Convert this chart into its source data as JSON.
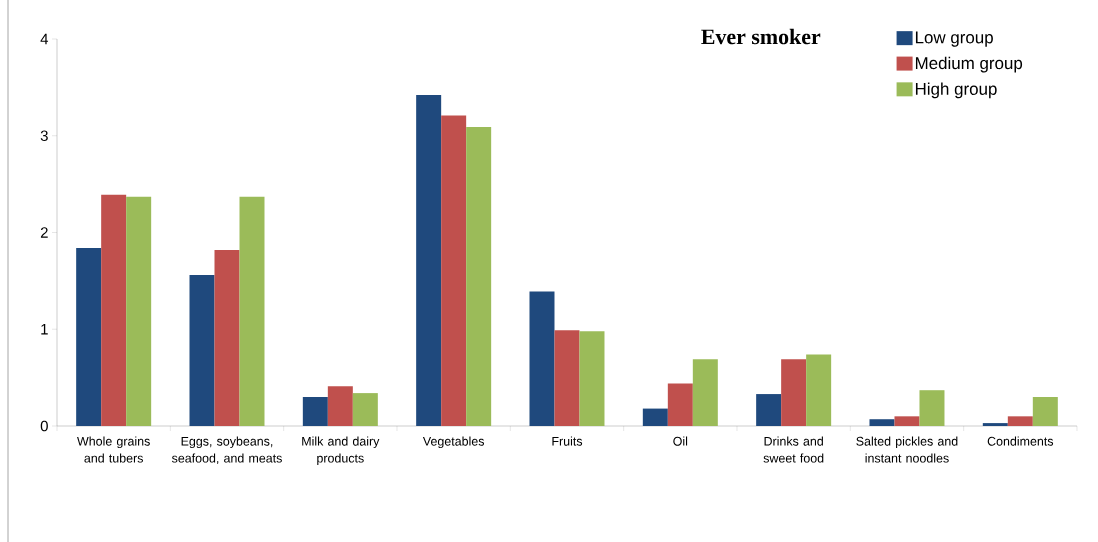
{
  "chart_data": {
    "type": "bar",
    "title": "Ever smoker",
    "categories": [
      "Whole grains and tubers",
      "Eggs, soybeans, seafood, and meats",
      "Milk and dairy products",
      "Vegetables",
      "Fruits",
      "Oil",
      "Drinks and sweet food",
      "Salted pickles and instant noodles",
      "Condiments"
    ],
    "series": [
      {
        "name": "Low group",
        "color": "#1f497d",
        "values": [
          1.84,
          1.56,
          0.3,
          3.42,
          1.39,
          0.18,
          0.33,
          0.07,
          0.03
        ]
      },
      {
        "name": "Medium group",
        "color": "#c0504d",
        "values": [
          2.39,
          1.82,
          0.41,
          3.21,
          0.99,
          0.44,
          0.69,
          0.1,
          0.1
        ]
      },
      {
        "name": "High group",
        "color": "#9bbb59",
        "values": [
          2.37,
          2.37,
          0.34,
          3.09,
          0.98,
          0.69,
          0.74,
          0.37,
          0.3
        ]
      }
    ],
    "ylim": [
      0,
      4
    ],
    "yticks": [
      0,
      1,
      2,
      3,
      4
    ],
    "grid": false,
    "legend": "top right"
  }
}
